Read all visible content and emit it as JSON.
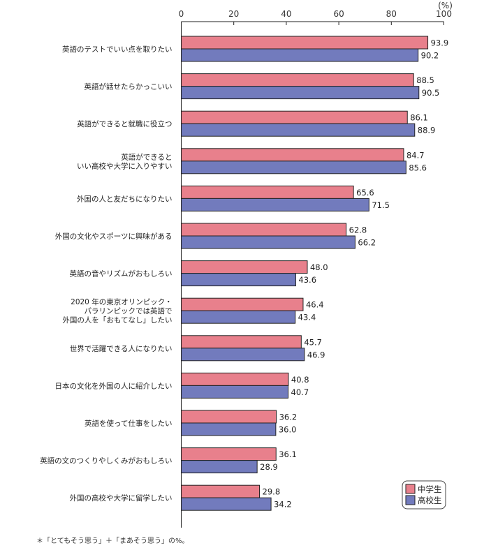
{
  "chart_data": {
    "type": "bar",
    "orientation": "horizontal",
    "unit_label": "(%)",
    "xlim": [
      0,
      100
    ],
    "xticks": [
      0,
      20,
      40,
      60,
      80,
      100
    ],
    "grid": false,
    "legend_position": "bottom-right",
    "categories": [
      [
        "英語のテストでいい点を取りたい"
      ],
      [
        "英語が話せたらかっこいい"
      ],
      [
        "英語ができると就職に役立つ"
      ],
      [
        "英語ができると",
        "いい高校や大学に入りやすい"
      ],
      [
        "外国の人と友だちになりたい"
      ],
      [
        "外国の文化やスポーツに興味がある"
      ],
      [
        "英語の音やリズムがおもしろい"
      ],
      [
        "2020 年の東京オリンピック・",
        "パラリンピックでは英語で",
        "外国の人を「おもてなし」したい"
      ],
      [
        "世界で活躍できる人になりたい"
      ],
      [
        "日本の文化を外国の人に紹介したい"
      ],
      [
        "英語を使って仕事をしたい"
      ],
      [
        "英語の文のつくりやしくみがおもしろい"
      ],
      [
        "外国の高校や大学に留学したい"
      ]
    ],
    "series": [
      {
        "name": "中学生",
        "color": "#e8808c",
        "values": [
          93.9,
          88.5,
          86.1,
          84.7,
          65.6,
          62.8,
          48.0,
          46.4,
          45.7,
          40.8,
          36.2,
          36.1,
          29.8
        ]
      },
      {
        "name": "高校生",
        "color": "#727bbd",
        "values": [
          90.2,
          90.5,
          88.9,
          85.6,
          71.5,
          66.2,
          43.6,
          43.4,
          46.9,
          40.7,
          36.0,
          28.9,
          34.2
        ]
      }
    ],
    "footnote": "＊「とてもそう思う」＋「まあそう思う」の%。"
  }
}
